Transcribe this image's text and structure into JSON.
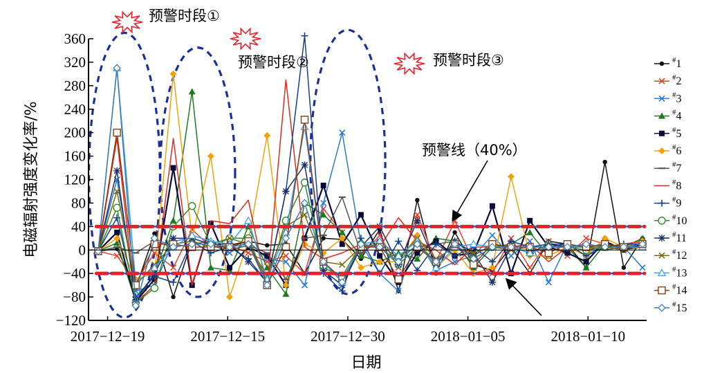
{
  "chart_data": {
    "type": "line",
    "xlabel": "日期",
    "ylabel": "电磁辐射强度变化率/%",
    "ylim": [
      -120,
      360
    ],
    "yticks": [
      -120,
      -80,
      -40,
      0,
      40,
      80,
      120,
      160,
      200,
      240,
      280,
      320,
      360
    ],
    "x_ticks": [
      {
        "index": 0.5,
        "label": "2017−12−19"
      },
      {
        "index": 6.9,
        "label": "2017−12−15"
      },
      {
        "index": 13.3,
        "label": "2017−12−30"
      },
      {
        "index": 19.7,
        "label": "2018−01−05"
      },
      {
        "index": 26.1,
        "label": "2018−01−10"
      }
    ],
    "warning_line": {
      "label": "预警线（40%）",
      "values": [
        40,
        -40
      ],
      "color": "#e8202a"
    },
    "warning_periods": [
      {
        "label": "预警时段①",
        "from_index": -0.2,
        "to_index": 3.0
      },
      {
        "label": "预警时段②",
        "from_index": 3.6,
        "to_index": 7.0
      },
      {
        "label": "预警时段③",
        "from_index": 11.6,
        "to_index": 15.0
      }
    ],
    "legend_position": "right",
    "grid": false,
    "series": [
      {
        "name": "1",
        "color": "#111111",
        "marker": "dot",
        "values": [
          -2,
          2,
          -65,
          28,
          -80,
          15,
          5,
          8,
          15,
          8,
          10,
          -40,
          20,
          18,
          -15,
          35,
          -70,
          85,
          -40,
          30,
          -25,
          -35,
          5,
          -40,
          15,
          10,
          -30,
          150,
          -30,
          20
        ]
      },
      {
        "name": "2",
        "color": "#e8412a",
        "marker": "x",
        "values": [
          -2,
          -10,
          -55,
          -5,
          -30,
          35,
          5,
          8,
          -5,
          -20,
          -10,
          -40,
          70,
          30,
          -10,
          25,
          -30,
          60,
          -20,
          50,
          -20,
          -40,
          20,
          -30,
          15,
          -10,
          20,
          10,
          5,
          15
        ]
      },
      {
        "name": "3",
        "color": "#2a7ad1",
        "marker": "x",
        "values": [
          -2,
          120,
          -70,
          -60,
          15,
          20,
          10,
          -5,
          15,
          -15,
          -20,
          -60,
          80,
          200,
          10,
          -40,
          -70,
          20,
          -35,
          -20,
          -10,
          25,
          -10,
          15,
          -55,
          10,
          -10,
          10,
          5,
          -30
        ]
      },
      {
        "name": "4",
        "color": "#1e7a1e",
        "marker": "triangle",
        "values": [
          -2,
          12,
          -88,
          -40,
          50,
          270,
          -30,
          -35,
          40,
          -30,
          -75,
          80,
          60,
          30,
          -10,
          -20,
          -5,
          -15,
          20,
          15,
          -30,
          5,
          10,
          30,
          -10,
          5,
          -30,
          10,
          5,
          20
        ]
      },
      {
        "name": "5",
        "color": "#0a0a3a",
        "marker": "square",
        "values": [
          -2,
          30,
          -88,
          -50,
          140,
          -60,
          45,
          -30,
          5,
          -10,
          -60,
          20,
          110,
          10,
          60,
          -10,
          -55,
          -5,
          15,
          -10,
          -5,
          75,
          -40,
          50,
          5,
          -5,
          -20,
          15,
          0,
          10
        ]
      },
      {
        "name": "6",
        "color": "#f2a20a",
        "marker": "diamond",
        "values": [
          -2,
          20,
          -50,
          -40,
          300,
          20,
          160,
          -80,
          15,
          195,
          -60,
          10,
          -5,
          20,
          -30,
          -20,
          -20,
          25,
          -30,
          0,
          -40,
          -30,
          125,
          -10,
          -10,
          5,
          -10,
          20,
          5,
          15
        ]
      },
      {
        "name": "7",
        "color": "#555555",
        "marker": "dash",
        "values": [
          -2,
          5,
          -5,
          15,
          5,
          10,
          15,
          0,
          8,
          -5,
          -50,
          20,
          25,
          90,
          -5,
          15,
          -10,
          5,
          10,
          15,
          -10,
          10,
          5,
          -5,
          5,
          10,
          5,
          0,
          5,
          5
        ]
      },
      {
        "name": "8",
        "color": "#e02a1a",
        "marker": "none",
        "values": [
          -2,
          190,
          -90,
          -60,
          190,
          -60,
          50,
          45,
          85,
          -65,
          290,
          5,
          -15,
          -5,
          10,
          5,
          55,
          15,
          0,
          -25,
          5,
          5,
          5,
          10,
          -20,
          5,
          10,
          5,
          10,
          15
        ]
      },
      {
        "name": "9",
        "color": "#123e8a",
        "marker": "plus",
        "values": [
          -2,
          55,
          -80,
          -45,
          -55,
          15,
          -5,
          5,
          -15,
          -55,
          100,
          365,
          -40,
          -70,
          20,
          -40,
          15,
          -35,
          10,
          -10,
          5,
          -20,
          15,
          5,
          10,
          10,
          -10,
          5,
          10,
          10
        ]
      },
      {
        "name": "10",
        "color": "#2e8b2e",
        "marker": "circle",
        "values": [
          -2,
          72,
          -90,
          -65,
          40,
          75,
          10,
          20,
          20,
          -55,
          50,
          115,
          -30,
          -45,
          10,
          5,
          -25,
          5,
          -20,
          10,
          -15,
          5,
          5,
          -5,
          10,
          5,
          0,
          5,
          5,
          10
        ]
      },
      {
        "name": "11",
        "color": "#1b2f6b",
        "marker": "asterisk",
        "values": [
          -2,
          135,
          -85,
          -40,
          20,
          20,
          10,
          10,
          -20,
          -55,
          100,
          145,
          -35,
          -60,
          5,
          40,
          -25,
          50,
          -25,
          15,
          -5,
          -55,
          5,
          -5,
          10,
          5,
          5,
          10,
          5,
          10
        ]
      },
      {
        "name": "12",
        "color": "#7a6a10",
        "marker": "x",
        "values": [
          -2,
          100,
          -60,
          -25,
          10,
          15,
          5,
          20,
          10,
          -45,
          40,
          60,
          -20,
          -25,
          5,
          10,
          -15,
          20,
          -15,
          5,
          -5,
          5,
          0,
          5,
          5,
          5,
          5,
          5,
          0,
          5
        ]
      },
      {
        "name": "13",
        "color": "#3aa0e8",
        "marker": "triangle-open",
        "values": [
          -2,
          310,
          -55,
          -30,
          5,
          25,
          15,
          10,
          50,
          -50,
          30,
          210,
          -20,
          -55,
          10,
          15,
          -10,
          15,
          -30,
          5,
          10,
          5,
          5,
          -5,
          5,
          5,
          5,
          10,
          5,
          5
        ]
      },
      {
        "name": "14",
        "color": "#8a3a10",
        "marker": "square-open",
        "values": [
          -2,
          200,
          -60,
          10,
          10,
          5,
          5,
          5,
          15,
          -60,
          5,
          222,
          -20,
          -50,
          5,
          5,
          -50,
          5,
          -20,
          10,
          -25,
          10,
          5,
          5,
          -5,
          10,
          5,
          10,
          5,
          10
        ]
      },
      {
        "name": "15",
        "color": "#3a7ab8",
        "marker": "diamond-open",
        "values": [
          -2,
          310,
          -95,
          20,
          5,
          10,
          10,
          5,
          10,
          -60,
          20,
          80,
          -20,
          -55,
          10,
          5,
          -20,
          10,
          -20,
          10,
          -15,
          5,
          5,
          5,
          5,
          5,
          10,
          5,
          5,
          10
        ]
      }
    ]
  }
}
